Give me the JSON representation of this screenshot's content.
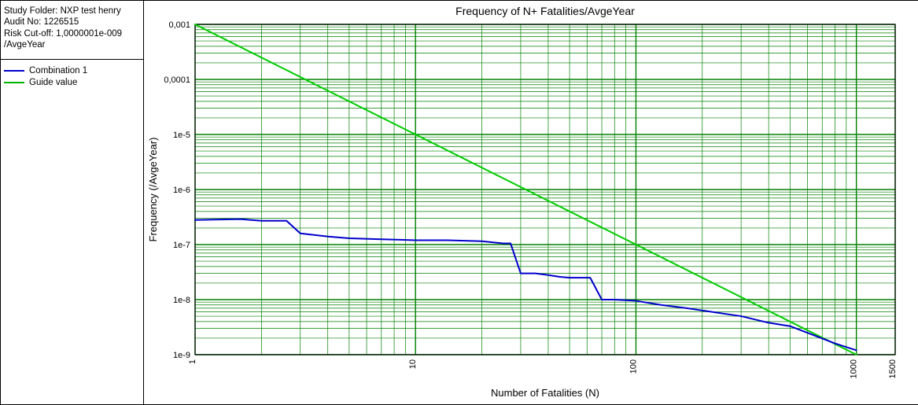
{
  "info": {
    "study_folder_label": "Study Folder:",
    "study_folder_value": "NXP test henry",
    "audit_no_label": "Audit No:",
    "audit_no_value": "1226515",
    "risk_cutoff_label": "Risk Cut-off:",
    "risk_cutoff_value": "1,0000001e-009",
    "risk_cutoff_unit": "/AvgeYear"
  },
  "legend": {
    "items": [
      {
        "label": "Combination 1",
        "color": "#0000cc"
      },
      {
        "label": "Guide value",
        "color": "#00b300"
      }
    ]
  },
  "chart": {
    "type": "line",
    "title": "Frequency of N+ Fatalities/AvgeYear",
    "title_fontsize": 14,
    "xlabel": "Number of Fatalities (N)",
    "ylabel": "Frequency (/AvgeYear)",
    "label_fontsize": 13,
    "tick_fontsize": 11,
    "background_color": "#ffffff",
    "plot_border_color": "#000000",
    "grid_major_color": "#008000",
    "grid_minor_color": "#008000",
    "grid_major_width": 1.4,
    "grid_minor_width": 0.7,
    "xscale": "log",
    "yscale": "log",
    "xlim": [
      1,
      1500
    ],
    "ylim": [
      1e-09,
      0.001
    ],
    "xticks_major": [
      1,
      10,
      100,
      1000
    ],
    "xticks_extra": [
      1500
    ],
    "yticks_major": [
      1e-09,
      1e-08,
      1e-07,
      1e-06,
      1e-05,
      0.0001,
      0.001
    ],
    "ytick_labels": [
      "1e-9",
      "1e-8",
      "1e-7",
      "1e-6",
      "1e-5",
      "0,0001",
      "0,001"
    ],
    "series": [
      {
        "name": "Guide value",
        "color": "#00cc00",
        "width": 2,
        "points": [
          [
            1,
            0.001
          ],
          [
            1000,
            1e-09
          ]
        ]
      },
      {
        "name": "Combination 1",
        "color": "#0000cc",
        "width": 2,
        "points": [
          [
            1,
            2.8e-07
          ],
          [
            1.6,
            2.9e-07
          ],
          [
            2,
            2.7e-07
          ],
          [
            2.6,
            2.7e-07
          ],
          [
            3,
            1.6e-07
          ],
          [
            4,
            1.4e-07
          ],
          [
            5,
            1.3e-07
          ],
          [
            7,
            1.25e-07
          ],
          [
            10,
            1.2e-07
          ],
          [
            14,
            1.2e-07
          ],
          [
            20,
            1.15e-07
          ],
          [
            25,
            1.05e-07
          ],
          [
            27,
            1.05e-07
          ],
          [
            30,
            3e-08
          ],
          [
            35,
            3e-08
          ],
          [
            40,
            2.8e-08
          ],
          [
            45,
            2.6e-08
          ],
          [
            50,
            2.5e-08
          ],
          [
            62,
            2.5e-08
          ],
          [
            70,
            1e-08
          ],
          [
            80,
            1e-08
          ],
          [
            100,
            9.5e-09
          ],
          [
            130,
            8e-09
          ],
          [
            170,
            7e-09
          ],
          [
            220,
            6e-09
          ],
          [
            300,
            5e-09
          ],
          [
            400,
            3.8e-09
          ],
          [
            500,
            3.3e-09
          ],
          [
            600,
            2.5e-09
          ],
          [
            800,
            1.6e-09
          ],
          [
            1000,
            1.2e-09
          ]
        ]
      }
    ]
  }
}
